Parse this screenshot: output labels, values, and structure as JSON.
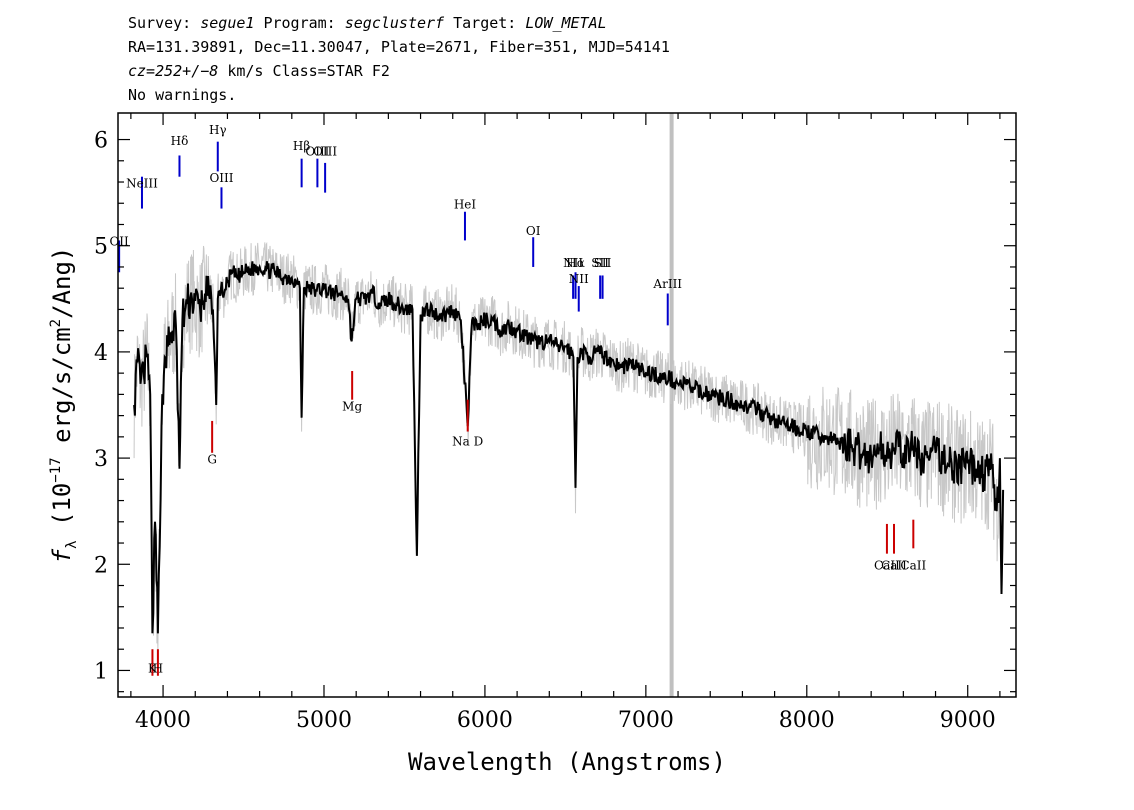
{
  "header": {
    "line1": {
      "survey_label": "Survey: ",
      "survey": "segue1",
      "program_label": " Program: ",
      "program": "segclusterf",
      "target_label": " Target: ",
      "target": "LOW_METAL"
    },
    "line2": "RA=131.39891, Dec=11.30047, Plate=2671, Fiber=351, MJD=54141",
    "line3": {
      "cz": "cz=252+/−8",
      "rest": " km/s Class=STAR F2"
    },
    "line4": "No warnings."
  },
  "chart_data": {
    "type": "line",
    "xlabel": "Wavelength (Angstroms)",
    "ylabel": "fλ (10⁻¹⁷ erg/s/cm²/Ang)",
    "xlim": [
      3720,
      9300
    ],
    "ylim": [
      0.75,
      6.25
    ],
    "x_ticks": [
      4000,
      5000,
      6000,
      7000,
      8000,
      9000
    ],
    "y_ticks": [
      1,
      2,
      3,
      4,
      5,
      6
    ],
    "colors": {
      "flux": "#000000",
      "raw_flux": "#c8c8c8",
      "emission_marker": "#0000cc",
      "absorption_marker": "#cc0000",
      "sky_line": "#c0c0c0"
    },
    "sky_line_x": 7160,
    "series": [
      {
        "values_note": "smoothed flux",
        "x": [
          3820,
          3840,
          3860,
          3880,
          3900,
          3920,
          3934,
          3950,
          3968,
          3990,
          4010,
          4030,
          4060,
          4080,
          4102,
          4120,
          4150,
          4180,
          4200,
          4230,
          4260,
          4290,
          4310,
          4330,
          4340,
          4360,
          4380,
          4400,
          4430,
          4460,
          4500,
          4550,
          4600,
          4650,
          4700,
          4750,
          4800,
          4830,
          4850,
          4861,
          4875,
          4900,
          4950,
          5000,
          5050,
          5100,
          5150,
          5172,
          5200,
          5250,
          5300,
          5350,
          5400,
          5450,
          5500,
          5550,
          5577,
          5600,
          5650,
          5700,
          5750,
          5800,
          5850,
          5893,
          5920,
          5950,
          6000,
          6050,
          6100,
          6150,
          6200,
          6250,
          6300,
          6350,
          6400,
          6450,
          6500,
          6530,
          6550,
          6563,
          6575,
          6600,
          6650,
          6700,
          6750,
          6800,
          6850,
          6900,
          6950,
          7000,
          7050,
          7100,
          7150,
          7200,
          7250,
          7300,
          7400,
          7500,
          7600,
          7700,
          7800,
          7900,
          8000,
          8100,
          8200,
          8300,
          8350,
          8400,
          8450,
          8498,
          8542,
          8600,
          8662,
          8700,
          8750,
          8800,
          8850,
          8900,
          8950,
          9000,
          9050,
          9100,
          9150,
          9180,
          9200,
          9210,
          9220
        ],
        "y": [
          3.5,
          3.9,
          3.7,
          3.8,
          3.95,
          3.6,
          1.35,
          2.4,
          1.35,
          3.3,
          3.95,
          4.05,
          4.2,
          4.25,
          2.9,
          4.3,
          4.45,
          4.5,
          4.48,
          4.4,
          4.55,
          4.5,
          4.4,
          3.5,
          4.5,
          4.6,
          4.55,
          4.65,
          4.75,
          4.7,
          4.75,
          4.78,
          4.8,
          4.78,
          4.75,
          4.7,
          4.7,
          4.65,
          4.6,
          3.38,
          4.6,
          4.6,
          4.58,
          4.6,
          4.55,
          4.55,
          4.5,
          4.1,
          4.5,
          4.5,
          4.55,
          4.45,
          4.5,
          4.45,
          4.4,
          4.4,
          2.08,
          4.35,
          4.4,
          4.35,
          4.35,
          4.4,
          4.3,
          3.3,
          4.3,
          4.25,
          4.3,
          4.3,
          4.2,
          4.25,
          4.2,
          4.15,
          4.1,
          4.1,
          4.1,
          4.05,
          4.05,
          4.0,
          3.95,
          2.72,
          3.95,
          4.0,
          3.95,
          4.0,
          3.95,
          3.9,
          3.85,
          3.9,
          3.85,
          3.8,
          3.8,
          3.75,
          3.75,
          3.7,
          3.7,
          3.65,
          3.6,
          3.55,
          3.5,
          3.45,
          3.35,
          3.3,
          3.25,
          3.2,
          3.15,
          3.1,
          3.05,
          3.0,
          3.1,
          3.05,
          3.1,
          3.05,
          3.1,
          3.0,
          3.0,
          3.05,
          3.0,
          2.95,
          2.9,
          2.95,
          2.9,
          2.85,
          2.9,
          2.5,
          3.0,
          1.72,
          2.7
        ]
      }
    ],
    "line_labels": [
      {
        "text": "NeIII",
        "x": 3869,
        "y_text": 5.55,
        "kind": "emission",
        "seg": [
          5.35,
          5.65
        ]
      },
      {
        "text": "OII",
        "x": 3727,
        "y_text": 5.0,
        "kind": "emission",
        "seg": [
          4.75,
          5.05
        ]
      },
      {
        "text": "Hδ",
        "x": 4102,
        "y_text": 5.95,
        "kind": "emission",
        "seg": [
          5.65,
          5.85
        ]
      },
      {
        "text": "Hγ",
        "x": 4340,
        "y_text": 6.05,
        "kind": "emission",
        "seg": [
          5.7,
          5.98
        ]
      },
      {
        "text": "OIII",
        "x": 4363,
        "y_text": 5.6,
        "kind": "emission",
        "seg": [
          5.35,
          5.55
        ]
      },
      {
        "text": "Hβ",
        "x": 4861,
        "y_text": 5.9,
        "kind": "emission",
        "seg": [
          5.55,
          5.82
        ]
      },
      {
        "text": "OIII",
        "x": 4959,
        "y_text": 5.85,
        "kind": "emission",
        "seg": [
          5.55,
          5.82
        ]
      },
      {
        "text": "OIII",
        "x": 5007,
        "y_text": 5.85,
        "kind": "emission",
        "seg": [
          5.5,
          5.78
        ]
      },
      {
        "text": "HeI",
        "x": 5876,
        "y_text": 5.35,
        "kind": "emission",
        "seg": [
          5.05,
          5.32
        ]
      },
      {
        "text": "OI",
        "x": 6300,
        "y_text": 5.1,
        "kind": "emission",
        "seg": [
          4.8,
          5.08
        ]
      },
      {
        "text": "NII",
        "x": 6548,
        "y_text": 4.8,
        "kind": "emission",
        "seg": [
          4.5,
          4.72
        ]
      },
      {
        "text": "Hα",
        "x": 6563,
        "y_text": 4.8,
        "kind": "emission",
        "seg": [
          4.5,
          4.75
        ]
      },
      {
        "text": "NII",
        "x": 6583,
        "y_text": 4.65,
        "kind": "emission",
        "seg": [
          4.38,
          4.62
        ]
      },
      {
        "text": "SII",
        "x": 6716,
        "y_text": 4.8,
        "kind": "emission",
        "seg": [
          4.5,
          4.72
        ]
      },
      {
        "text": "SII",
        "x": 6731,
        "y_text": 4.8,
        "kind": "emission",
        "seg": [
          4.5,
          4.72
        ]
      },
      {
        "text": "ArIII",
        "x": 7136,
        "y_text": 4.6,
        "kind": "emission",
        "seg": [
          4.25,
          4.55
        ]
      },
      {
        "text": "Mg",
        "x": 5175,
        "y_text": 3.45,
        "kind": "absorption",
        "seg": [
          3.55,
          3.82
        ]
      },
      {
        "text": "G",
        "x": 4305,
        "y_text": 2.95,
        "kind": "absorption",
        "seg": [
          3.05,
          3.35
        ]
      },
      {
        "text": "Na D",
        "x": 5893,
        "y_text": 3.12,
        "kind": "absorption",
        "seg": [
          3.25,
          3.55
        ]
      },
      {
        "text": "CaII",
        "x": 8542,
        "y_text": 1.95,
        "kind": "absorption",
        "seg": [
          2.1,
          2.38
        ]
      },
      {
        "text": "CaII",
        "x": 8498,
        "y_text": 1.95,
        "kind": "absorption",
        "seg": [
          2.1,
          2.38
        ]
      },
      {
        "text": "CaII",
        "x": 8662,
        "y_text": 1.95,
        "kind": "absorption",
        "seg": [
          2.15,
          2.42
        ]
      },
      {
        "text": "K",
        "x": 3934,
        "y_text": 0.98,
        "kind": "absorption",
        "seg": [
          0.95,
          1.2
        ]
      },
      {
        "text": "H",
        "x": 3968,
        "y_text": 0.98,
        "kind": "absorption",
        "seg": [
          0.95,
          1.2
        ]
      }
    ]
  }
}
